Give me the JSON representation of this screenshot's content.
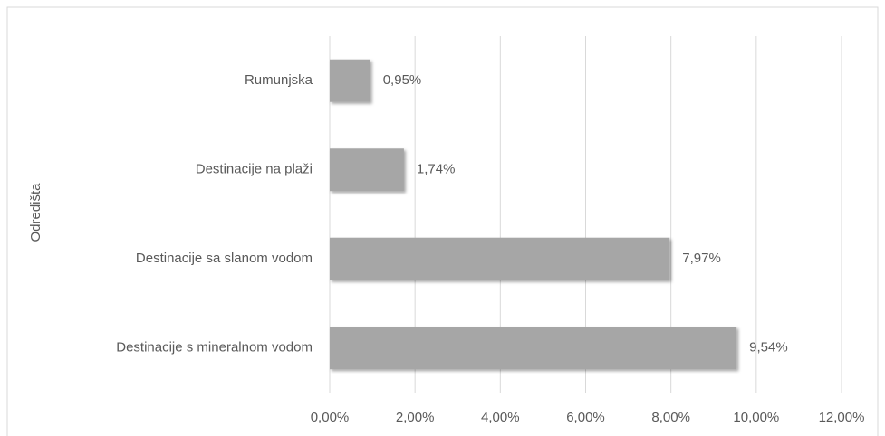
{
  "chart_data": {
    "type": "bar",
    "orientation": "horizontal",
    "y_label": "Odredišta",
    "categories": [
      "Rumunjska",
      "Destinacije na plaži",
      "Destinacije sa slanom vodom",
      "Destinacije s mineralnom vodom"
    ],
    "values": [
      0.95,
      1.74,
      7.97,
      9.54
    ],
    "value_labels": [
      "0,95%",
      "1,74%",
      "7,97%",
      "9,54%"
    ],
    "color": "#a6a6a6",
    "xlim": [
      0,
      12
    ],
    "xticks": [
      {
        "value": 0,
        "label": "0,00%"
      },
      {
        "value": 2,
        "label": "2,00%"
      },
      {
        "value": 4,
        "label": "4,00%"
      },
      {
        "value": 6,
        "label": "6,00%"
      },
      {
        "value": 8,
        "label": "8,00%"
      },
      {
        "value": 10,
        "label": "10,00%"
      },
      {
        "value": 12,
        "label": "12,00%"
      }
    ],
    "grid": true
  }
}
